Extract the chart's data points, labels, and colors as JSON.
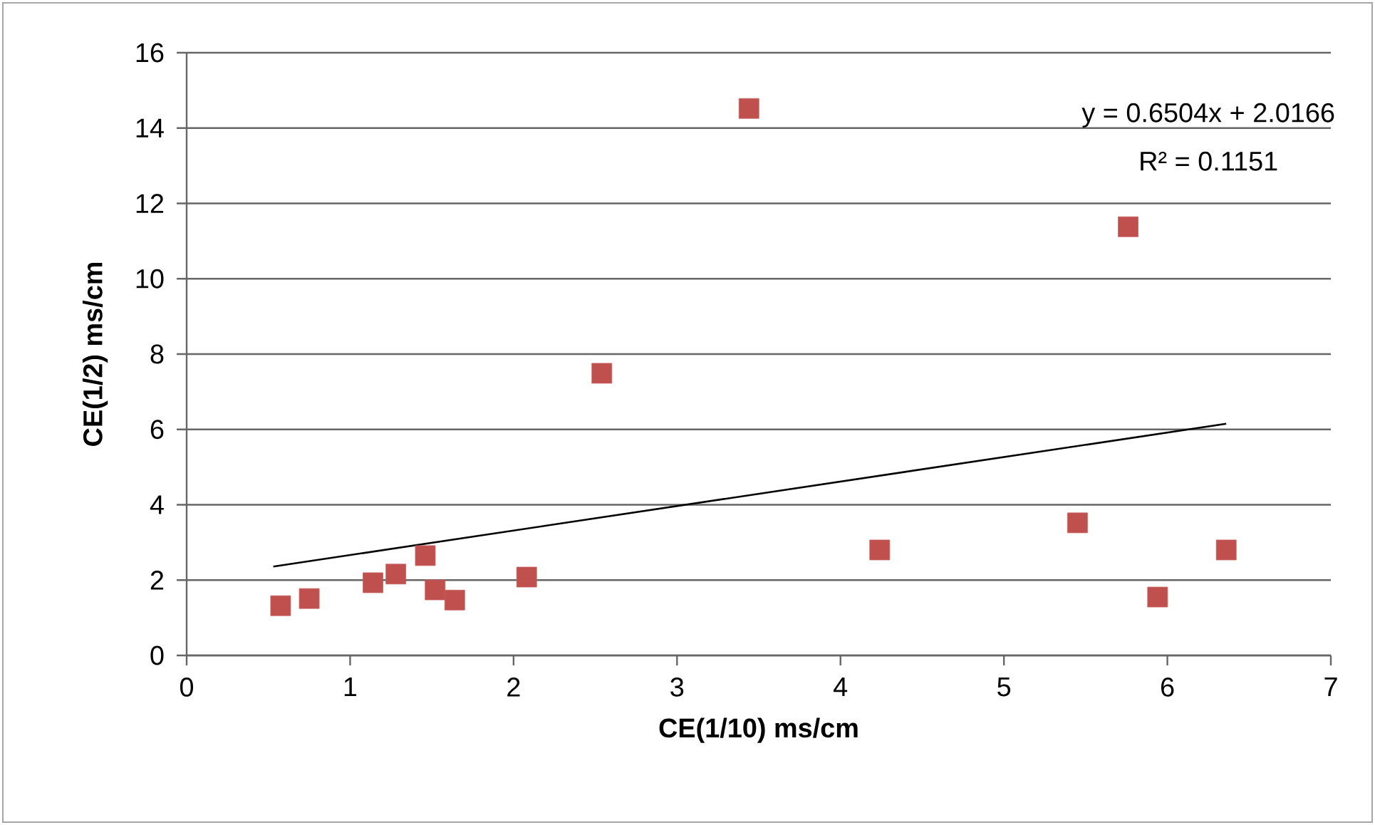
{
  "chart_data": {
    "type": "scatter",
    "xlabel": "CE(1/10) ms/cm",
    "ylabel": "CE(1/2) ms/cm",
    "annotations": [
      "y = 0.6504x + 2.0166",
      "R² = 0.1151"
    ],
    "xlim": [
      0,
      7
    ],
    "xticks": [
      0,
      1,
      2,
      3,
      4,
      5,
      6,
      7
    ],
    "ylim": [
      0,
      16
    ],
    "yticks": [
      0,
      2,
      4,
      6,
      8,
      10,
      12,
      14,
      16
    ],
    "grid": "y",
    "marker": "square",
    "series": [
      {
        "color": "#c0504d",
        "x": [
          0.575,
          0.75,
          1.14,
          1.28,
          1.46,
          1.52,
          1.64,
          2.08,
          2.54,
          3.44,
          4.24,
          5.45,
          5.76,
          5.94,
          6.36
        ],
        "values": [
          1.32,
          1.51,
          1.93,
          2.16,
          2.65,
          1.74,
          1.47,
          2.08,
          7.49,
          14.52,
          2.8,
          3.52,
          11.38,
          1.55,
          2.8
        ]
      },
      {
        "type": "line",
        "color": "#000000",
        "marker": "none",
        "x": [
          0.53,
          6.36
        ],
        "values": [
          2.36,
          6.15
        ]
      }
    ]
  }
}
